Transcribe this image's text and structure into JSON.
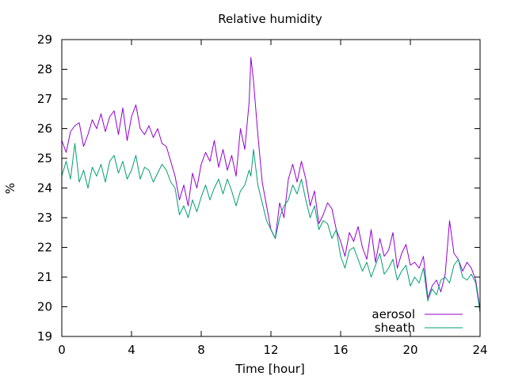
{
  "chart_data": {
    "type": "line",
    "title": "Relative humidity",
    "xlabel": "Time [hour]",
    "ylabel": "%",
    "xlim": [
      0,
      24
    ],
    "ylim": [
      19,
      29
    ],
    "x_ticks": [
      0,
      4,
      8,
      12,
      16,
      20,
      24
    ],
    "y_ticks": [
      19,
      20,
      21,
      22,
      23,
      24,
      25,
      26,
      27,
      28,
      29
    ],
    "grid": false,
    "legend_position": "bottom-right",
    "series": [
      {
        "name": "aerosol",
        "color": "#9400d3",
        "x": [
          0,
          0.25,
          0.5,
          0.75,
          1,
          1.25,
          1.5,
          1.75,
          2,
          2.25,
          2.5,
          2.75,
          3,
          3.25,
          3.5,
          3.75,
          4,
          4.25,
          4.5,
          4.75,
          5,
          5.25,
          5.5,
          5.75,
          6,
          6.25,
          6.5,
          6.75,
          7,
          7.25,
          7.5,
          7.75,
          8,
          8.25,
          8.5,
          8.75,
          9,
          9.25,
          9.5,
          9.75,
          10,
          10.25,
          10.5,
          10.75,
          10.85,
          11,
          11.25,
          11.5,
          11.75,
          12,
          12.25,
          12.5,
          12.75,
          13,
          13.25,
          13.5,
          13.75,
          14,
          14.25,
          14.5,
          14.75,
          15,
          15.25,
          15.5,
          15.75,
          16,
          16.25,
          16.5,
          16.75,
          17,
          17.25,
          17.5,
          17.75,
          18,
          18.25,
          18.5,
          18.75,
          19,
          19.25,
          19.5,
          19.75,
          20,
          20.25,
          20.5,
          20.75,
          21,
          21.25,
          21.5,
          21.75,
          22,
          22.25,
          22.5,
          22.75,
          23,
          23.25,
          23.5,
          23.75,
          24
        ],
        "y": [
          25.6,
          25.2,
          25.9,
          26.1,
          26.2,
          25.4,
          25.8,
          26.3,
          26.0,
          26.5,
          25.9,
          26.4,
          26.6,
          25.8,
          26.7,
          25.6,
          26.4,
          26.8,
          26.0,
          25.8,
          26.1,
          25.7,
          26.0,
          25.5,
          25.4,
          24.9,
          24.4,
          23.6,
          24.1,
          23.4,
          24.5,
          24.0,
          24.8,
          25.2,
          24.9,
          25.6,
          24.7,
          25.3,
          24.6,
          25.1,
          24.4,
          26.0,
          25.3,
          26.9,
          28.4,
          27.6,
          25.8,
          24.2,
          23.4,
          22.6,
          22.3,
          23.5,
          23.0,
          24.3,
          24.8,
          24.2,
          24.9,
          24.3,
          23.4,
          23.9,
          22.8,
          23.1,
          23.5,
          23.3,
          22.6,
          22.2,
          21.7,
          22.5,
          22.2,
          22.7,
          22.0,
          21.6,
          22.6,
          21.5,
          22.3,
          21.7,
          21.9,
          22.5,
          21.3,
          21.8,
          22.1,
          21.4,
          21.5,
          21.3,
          21.7,
          20.3,
          20.7,
          20.9,
          20.5,
          21.1,
          22.9,
          21.8,
          21.6,
          21.2,
          21.5,
          21.3,
          20.9,
          19.9
        ],
        "extra_note": ""
      },
      {
        "name": "sheath",
        "color": "#009e73",
        "x": [
          0,
          0.25,
          0.5,
          0.75,
          1,
          1.25,
          1.5,
          1.75,
          2,
          2.25,
          2.5,
          2.75,
          3,
          3.25,
          3.5,
          3.75,
          4,
          4.25,
          4.5,
          4.75,
          5,
          5.25,
          5.5,
          5.75,
          6,
          6.25,
          6.5,
          6.75,
          7,
          7.25,
          7.5,
          7.75,
          8,
          8.25,
          8.5,
          8.75,
          9,
          9.25,
          9.5,
          9.75,
          10,
          10.25,
          10.5,
          10.75,
          10.85,
          11,
          11.25,
          11.5,
          11.75,
          12,
          12.25,
          12.5,
          12.75,
          13,
          13.25,
          13.5,
          13.75,
          14,
          14.25,
          14.5,
          14.75,
          15,
          15.25,
          15.5,
          15.75,
          16,
          16.25,
          16.5,
          16.75,
          17,
          17.25,
          17.5,
          17.75,
          18,
          18.25,
          18.5,
          18.75,
          19,
          19.25,
          19.5,
          19.75,
          20,
          20.25,
          20.5,
          20.75,
          21,
          21.25,
          21.5,
          21.75,
          22,
          22.25,
          22.5,
          22.75,
          23,
          23.25,
          23.5,
          23.75,
          24
        ],
        "y": [
          24.4,
          24.9,
          24.3,
          25.5,
          24.2,
          24.6,
          24.0,
          24.7,
          24.4,
          24.8,
          24.2,
          24.9,
          25.1,
          24.5,
          24.9,
          24.3,
          24.6,
          25.1,
          24.3,
          24.7,
          24.6,
          24.2,
          24.5,
          24.8,
          24.6,
          24.2,
          24.0,
          23.1,
          23.4,
          23.0,
          23.6,
          23.2,
          23.7,
          24.1,
          23.6,
          24.0,
          24.3,
          23.8,
          24.3,
          23.9,
          23.4,
          23.9,
          24.1,
          24.6,
          24.4,
          25.3,
          24.1,
          23.5,
          22.9,
          22.6,
          22.3,
          23.0,
          23.4,
          23.6,
          24.1,
          23.8,
          24.3,
          23.6,
          23.0,
          23.4,
          22.6,
          22.9,
          22.8,
          22.3,
          22.6,
          21.7,
          21.3,
          21.9,
          22.0,
          21.6,
          21.2,
          21.5,
          21.0,
          21.4,
          21.8,
          21.1,
          21.3,
          21.6,
          20.9,
          21.2,
          21.4,
          20.7,
          21.0,
          20.8,
          21.3,
          20.2,
          20.6,
          20.4,
          20.9,
          21.0,
          20.8,
          21.4,
          21.6,
          21.0,
          20.9,
          21.1,
          20.8,
          19.8
        ],
        "extra_note": ""
      }
    ]
  }
}
